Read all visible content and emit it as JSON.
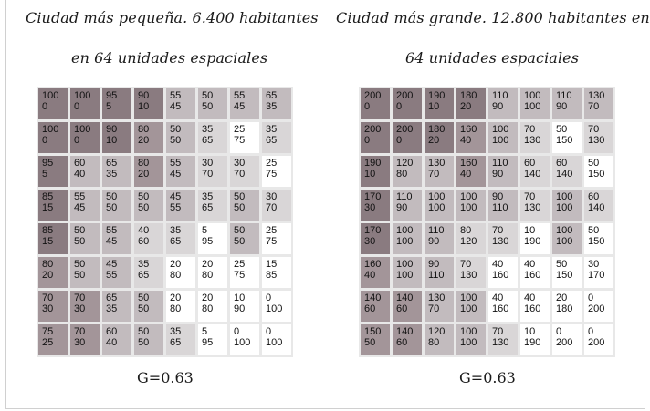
{
  "left_panel": {
    "title_line1": "Ciudad más pequeña. 6.400 habitantes",
    "title_line2": "en 64 unidades espaciales",
    "g_label": "G=0.63",
    "cells": [
      [
        "100",
        "0"
      ],
      [
        "100",
        "0"
      ],
      [
        "95",
        "5"
      ],
      [
        "90",
        "10"
      ],
      [
        "55",
        "45"
      ],
      [
        "50",
        "50"
      ],
      [
        "55",
        "45"
      ],
      [
        "65",
        "35"
      ],
      [
        "100",
        "0"
      ],
      [
        "100",
        "0"
      ],
      [
        "90",
        "10"
      ],
      [
        "80",
        "20"
      ],
      [
        "50",
        "50"
      ],
      [
        "35",
        "65"
      ],
      [
        "25",
        "75"
      ],
      [
        "35",
        "65"
      ],
      [
        "95",
        "5"
      ],
      [
        "60",
        "40"
      ],
      [
        "65",
        "35"
      ],
      [
        "80",
        "20"
      ],
      [
        "55",
        "45"
      ],
      [
        "30",
        "70"
      ],
      [
        "30",
        "70"
      ],
      [
        "25",
        "75"
      ],
      [
        "85",
        "15"
      ],
      [
        "55",
        "45"
      ],
      [
        "50",
        "50"
      ],
      [
        "50",
        "50"
      ],
      [
        "45",
        "55"
      ],
      [
        "35",
        "65"
      ],
      [
        "50",
        "50"
      ],
      [
        "30",
        "70"
      ],
      [
        "85",
        "15"
      ],
      [
        "50",
        "50"
      ],
      [
        "55",
        "45"
      ],
      [
        "40",
        "60"
      ],
      [
        "35",
        "65"
      ],
      [
        "5",
        "95"
      ],
      [
        "50",
        "50"
      ],
      [
        "25",
        "75"
      ],
      [
        "80",
        "20"
      ],
      [
        "50",
        "50"
      ],
      [
        "45",
        "55"
      ],
      [
        "35",
        "65"
      ],
      [
        "20",
        "80"
      ],
      [
        "20",
        "80"
      ],
      [
        "25",
        "75"
      ],
      [
        "15",
        "85"
      ],
      [
        "70",
        "30"
      ],
      [
        "70",
        "30"
      ],
      [
        "65",
        "35"
      ],
      [
        "50",
        "50"
      ],
      [
        "20",
        "80"
      ],
      [
        "20",
        "80"
      ],
      [
        "10",
        "90"
      ],
      [
        "0",
        "100"
      ],
      [
        "75",
        "25"
      ],
      [
        "70",
        "30"
      ],
      [
        "60",
        "40"
      ],
      [
        "50",
        "50"
      ],
      [
        "35",
        "65"
      ],
      [
        "5",
        "95"
      ],
      [
        "0",
        "100"
      ],
      [
        "0",
        "100"
      ]
    ]
  },
  "right_panel": {
    "title_line1": "Ciudad más grande. 12.800 habitantes en",
    "title_line2": "64 unidades espaciales",
    "g_label": "G=0.63",
    "cells": [
      [
        "200",
        "0"
      ],
      [
        "200",
        "0"
      ],
      [
        "190",
        "10"
      ],
      [
        "180",
        "20"
      ],
      [
        "110",
        "90"
      ],
      [
        "100",
        "100"
      ],
      [
        "110",
        "90"
      ],
      [
        "130",
        "70"
      ],
      [
        "200",
        "0"
      ],
      [
        "200",
        "0"
      ],
      [
        "180",
        "20"
      ],
      [
        "160",
        "40"
      ],
      [
        "100",
        "100"
      ],
      [
        "70",
        "130"
      ],
      [
        "50",
        "150"
      ],
      [
        "70",
        "130"
      ],
      [
        "190",
        "10"
      ],
      [
        "120",
        "80"
      ],
      [
        "130",
        "70"
      ],
      [
        "160",
        "40"
      ],
      [
        "110",
        "90"
      ],
      [
        "60",
        "140"
      ],
      [
        "60",
        "140"
      ],
      [
        "50",
        "150"
      ],
      [
        "170",
        "30"
      ],
      [
        "110",
        "90"
      ],
      [
        "100",
        "100"
      ],
      [
        "100",
        "100"
      ],
      [
        "90",
        "110"
      ],
      [
        "70",
        "130"
      ],
      [
        "100",
        "100"
      ],
      [
        "60",
        "140"
      ],
      [
        "170",
        "30"
      ],
      [
        "100",
        "100"
      ],
      [
        "110",
        "90"
      ],
      [
        "80",
        "120"
      ],
      [
        "70",
        "130"
      ],
      [
        "10",
        "190"
      ],
      [
        "100",
        "100"
      ],
      [
        "50",
        "150"
      ],
      [
        "160",
        "40"
      ],
      [
        "100",
        "100"
      ],
      [
        "90",
        "110"
      ],
      [
        "70",
        "130"
      ],
      [
        "40",
        "160"
      ],
      [
        "40",
        "160"
      ],
      [
        "50",
        "150"
      ],
      [
        "30",
        "170"
      ],
      [
        "140",
        "60"
      ],
      [
        "140",
        "60"
      ],
      [
        "130",
        "70"
      ],
      [
        "100",
        "100"
      ],
      [
        "40",
        "160"
      ],
      [
        "40",
        "160"
      ],
      [
        "20",
        "180"
      ],
      [
        "0",
        "200"
      ],
      [
        "150",
        "50"
      ],
      [
        "140",
        "60"
      ],
      [
        "120",
        "80"
      ],
      [
        "100",
        "100"
      ],
      [
        "70",
        "130"
      ],
      [
        "10",
        "190"
      ],
      [
        "0",
        "200"
      ],
      [
        "0",
        "200"
      ]
    ]
  },
  "shade_colors": {
    "darkest": "#8a7b80",
    "dark": "#a39599",
    "medium": "#c2bbbe",
    "light": "#d9d6d7",
    "white": "#ffffff"
  }
}
